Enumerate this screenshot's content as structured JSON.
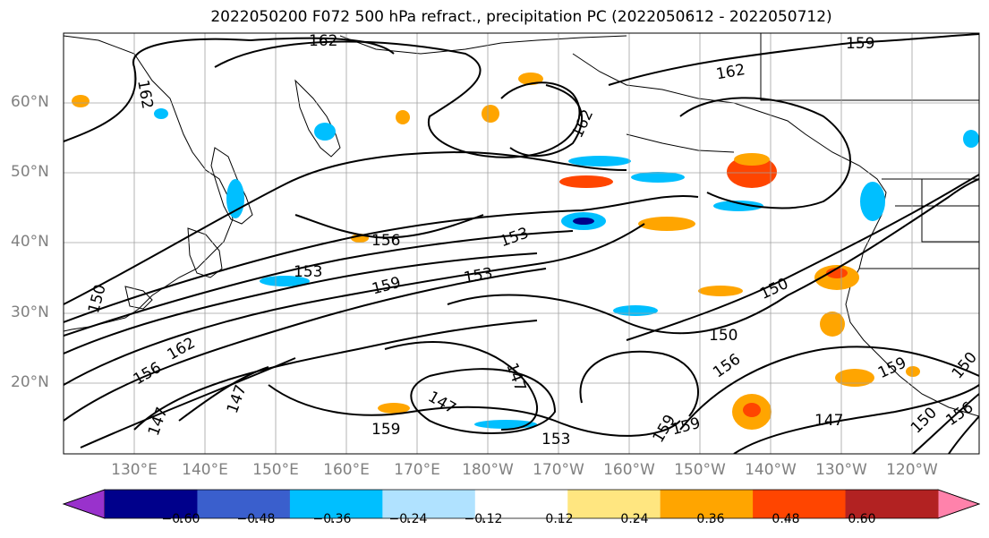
{
  "title": "2022050200 F072 500 hPa refract., precipitation PC (2022050612 - 2022050712)",
  "lat_labels": [
    "60°N",
    "50°N",
    "40°N",
    "30°N",
    "20°N"
  ],
  "lon_labels": [
    "130°E",
    "140°E",
    "150°E",
    "160°E",
    "170°E",
    "180°W",
    "170°W",
    "160°W",
    "150°W",
    "140°W",
    "130°W",
    "120°W"
  ],
  "contour_labels": [
    "162",
    "162",
    "159",
    "162",
    "162",
    "156",
    "153",
    "153",
    "153",
    "159",
    "150",
    "162",
    "156",
    "150",
    "147",
    "147",
    "159",
    "147",
    "153",
    "147",
    "159",
    "159",
    "156",
    "150",
    "147",
    "150",
    "150",
    "156",
    "159"
  ],
  "colorbar": {
    "ticks": [
      "−0.60",
      "−0.48",
      "−0.36",
      "−0.24",
      "−0.12",
      "0.12",
      "0.24",
      "0.36",
      "0.48",
      "0.60"
    ],
    "colors": [
      "#9932cc",
      "#00008b",
      "#3a5fcd",
      "#00bfff",
      "#b0e2ff",
      "#ffffff",
      "#ffe680",
      "#ffa500",
      "#ff4500",
      "#b22222",
      "#ff82ab"
    ]
  }
}
